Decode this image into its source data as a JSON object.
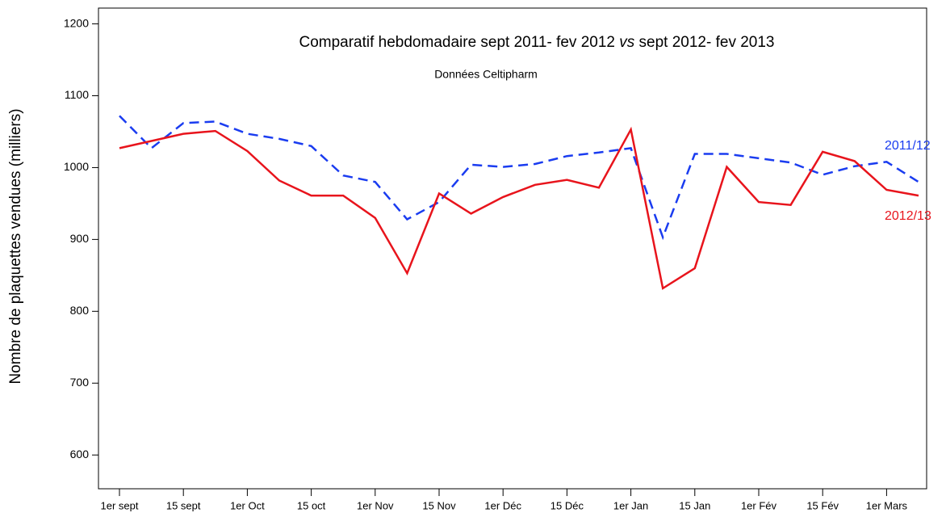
{
  "chart_data": {
    "type": "line",
    "title": "Comparatif hebdomadaire sept 2011- fev 2012 vs sept 2012- fev 2013",
    "subtitle": "Données Celtipharm",
    "ylabel": "Nombre de plaquettes vendues  (milliers)",
    "categories": [
      "1er sept",
      null,
      "15 sept",
      null,
      "1er Oct",
      null,
      "15 oct",
      null,
      "1er Nov",
      null,
      "15 Nov",
      null,
      "1er Déc",
      null,
      "15 Déc",
      null,
      "1er Jan",
      null,
      "15 Jan",
      null,
      "1er Fév",
      null,
      "15 Fév",
      null,
      "1er Mars",
      null
    ],
    "series": [
      {
        "name": "2011/12",
        "color": "#1a3cf0",
        "line_style": "dashed",
        "values": [
          1072,
          1027,
          1062,
          1064,
          1047,
          1040,
          1030,
          989,
          980,
          928,
          952,
          1004,
          1001,
          1005,
          1016,
          1021,
          1027,
          903,
          1019,
          1019,
          1013,
          1007,
          990,
          1002,
          1008,
          980
        ]
      },
      {
        "name": "2012/13",
        "color": "#e8141c",
        "line_style": "solid",
        "values": [
          1027,
          1037,
          1047,
          1051,
          1023,
          982,
          961,
          961,
          930,
          853,
          964,
          936,
          959,
          976,
          983,
          972,
          1053,
          832,
          860,
          1001,
          952,
          948,
          1022,
          1009,
          969,
          961
        ]
      }
    ],
    "ylim": [
      553,
      1222
    ],
    "yticks": [
      600,
      700,
      800,
      900,
      1000,
      1100,
      1200
    ],
    "grid": false
  }
}
